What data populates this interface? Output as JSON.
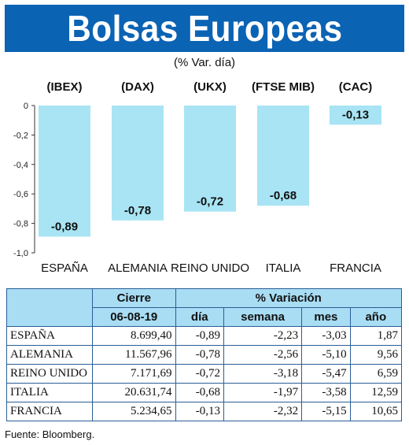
{
  "title": "Bolsas Europeas",
  "subtitle": "(% Var. día)",
  "colors": {
    "title_bg": "#0b63b4",
    "bar": "#a8e4f4",
    "table_header": "#a8ddf3",
    "grid": "#2a5e96"
  },
  "chart_data": {
    "type": "bar",
    "indices": [
      "(IBEX)",
      "(DAX)",
      "(UKX)",
      "(FTSE MIB)",
      "(CAC)"
    ],
    "categories": [
      "ESPAÑA",
      "ALEMANIA",
      "REINO UNIDO",
      "ITALIA",
      "FRANCIA"
    ],
    "values": [
      -0.89,
      -0.78,
      -0.72,
      -0.68,
      -0.13
    ],
    "value_labels": [
      "-0,89",
      "-0,78",
      "-0,72",
      "-0,68",
      "-0,13"
    ],
    "yticks": [
      "0",
      "-0,2",
      "-0,4",
      "-0,6",
      "-0,8",
      "-1,0"
    ],
    "ylim": [
      -1.0,
      0
    ],
    "grid": false
  },
  "table": {
    "group_headers": {
      "close": "Cierre",
      "variation": "% Variación"
    },
    "column_headers": [
      "06-08-19",
      "día",
      "semana",
      "mes",
      "año"
    ],
    "rows": [
      {
        "name": "ESPAÑA",
        "close": "8.699,40",
        "day": "-0,89",
        "week": "-2,23",
        "month": "-3,03",
        "year": "1,87"
      },
      {
        "name": "ALEMANIA",
        "close": "11.567,96",
        "day": "-0,78",
        "week": "-2,56",
        "month": "-5,10",
        "year": "9,56"
      },
      {
        "name": "REINO UNIDO",
        "close": "7.171,69",
        "day": "-0,72",
        "week": "-3,18",
        "month": "-5,47",
        "year": "6,59"
      },
      {
        "name": "ITALIA",
        "close": "20.631,74",
        "day": "-0,68",
        "week": "-1,97",
        "month": "-3,58",
        "year": "12,59"
      },
      {
        "name": "FRANCIA",
        "close": "5.234,65",
        "day": "-0,13",
        "week": "-2,32",
        "month": "-5,15",
        "year": "10,65"
      }
    ]
  },
  "source": "Fuente: Bloomberg."
}
